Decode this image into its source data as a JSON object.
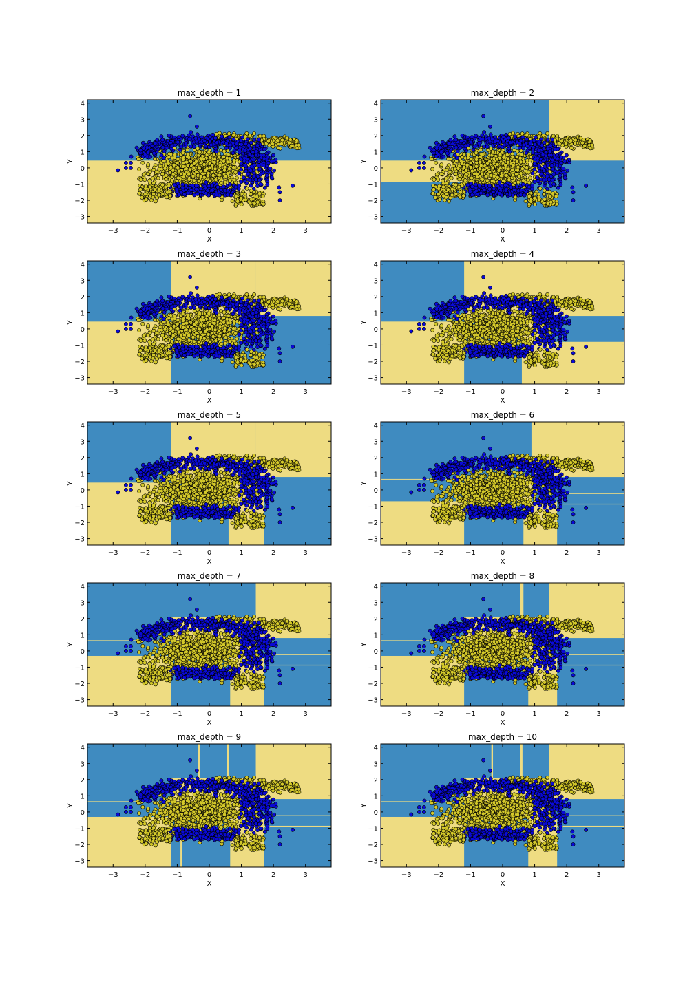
{
  "figure": {
    "background": "#ffffff"
  },
  "chart_data": {
    "type": "scatter",
    "description_kind": "decision-boundary grid",
    "grid": false,
    "layout_words": "5 rows x 2 columns",
    "colors": {
      "region_class_0": "#3f8bc0",
      "region_class_1": "#eedc82",
      "point_class_0": "#0a0ad8",
      "point_class_1": "#d4c92a",
      "point_edge": "#000000"
    },
    "xlim": [
      -3.8,
      3.8
    ],
    "ylim": [
      -3.4,
      4.2
    ],
    "xticks": [
      -3,
      -2,
      -1,
      0,
      1,
      2,
      3
    ],
    "yticks": [
      -3,
      -2,
      -1,
      0,
      1,
      2,
      3,
      4
    ],
    "xlabel": "X",
    "ylabel": "Y",
    "outlier_points_class0": [
      [
        -2.85,
        -0.15
      ],
      [
        -2.6,
        0.3
      ],
      [
        -2.6,
        0.0
      ],
      [
        -2.45,
        0.3
      ],
      [
        -2.45,
        0.0
      ],
      [
        2.6,
        -1.1
      ],
      [
        2.2,
        -2.0
      ],
      [
        2.2,
        -1.5
      ],
      [
        -0.6,
        3.2
      ]
    ],
    "panels": [
      {
        "title": "max_depth = 1",
        "base": 1,
        "rects": [
          [
            -3.8,
            0.45,
            3.8,
            4.2,
            0
          ]
        ]
      },
      {
        "title": "max_depth = 2",
        "base": 0,
        "rects": [
          [
            -3.8,
            -0.88,
            1.45,
            0.45,
            1
          ],
          [
            1.45,
            0.45,
            3.8,
            4.2,
            1
          ]
        ]
      },
      {
        "title": "max_depth = 3",
        "base": 0,
        "rects": [
          [
            -3.8,
            -3.4,
            -1.2,
            0.45,
            1
          ],
          [
            -1.2,
            0.45,
            1.45,
            4.2,
            1
          ],
          [
            1.45,
            0.8,
            3.8,
            4.2,
            1
          ]
        ]
      },
      {
        "title": "max_depth = 4",
        "base": 0,
        "rects": [
          [
            -3.8,
            -3.4,
            -1.2,
            0.45,
            1
          ],
          [
            -1.2,
            0.45,
            1.45,
            4.2,
            1
          ],
          [
            1.45,
            0.8,
            3.8,
            4.2,
            1
          ],
          [
            0.6,
            -3.4,
            1.45,
            0.45,
            1
          ],
          [
            1.45,
            -3.4,
            3.8,
            -0.8,
            1
          ]
        ]
      },
      {
        "title": "max_depth = 5",
        "base": 0,
        "rects": [
          [
            -3.8,
            -3.4,
            -1.2,
            0.45,
            1
          ],
          [
            -1.2,
            0.45,
            1.45,
            4.2,
            1
          ],
          [
            1.45,
            0.8,
            3.8,
            4.2,
            1
          ],
          [
            0.6,
            -3.4,
            1.7,
            0.45,
            1
          ]
        ]
      },
      {
        "title": "max_depth = 6",
        "base": 0,
        "rects": [
          [
            -3.8,
            -3.4,
            -1.2,
            -0.7,
            1
          ],
          [
            -1.2,
            -0.7,
            0.9,
            0.65,
            1
          ],
          [
            0.9,
            0.8,
            3.8,
            4.2,
            1
          ],
          [
            0.65,
            -3.4,
            1.7,
            -0.7,
            1
          ],
          [
            -3.8,
            0.65,
            0.9,
            0.68,
            1
          ],
          [
            1.7,
            -0.25,
            3.8,
            -0.2,
            1
          ],
          [
            1.7,
            -0.9,
            3.8,
            -0.85,
            1
          ]
        ]
      },
      {
        "title": "max_depth = 7",
        "base": 0,
        "rects": [
          [
            -3.8,
            -3.4,
            -1.2,
            -0.3,
            1
          ],
          [
            -1.2,
            -0.3,
            1.45,
            0.65,
            1
          ],
          [
            -1.2,
            0.65,
            1.45,
            2.1,
            1
          ],
          [
            1.45,
            0.8,
            3.8,
            4.2,
            1
          ],
          [
            0.65,
            -3.4,
            1.7,
            -0.3,
            1
          ],
          [
            -3.8,
            0.62,
            -1.2,
            0.66,
            1
          ],
          [
            1.7,
            -0.25,
            3.8,
            -0.2,
            1
          ],
          [
            1.7,
            -0.9,
            3.8,
            -0.85,
            1
          ]
        ]
      },
      {
        "title": "max_depth = 8",
        "base": 0,
        "rects": [
          [
            -3.8,
            -3.4,
            -1.2,
            -0.3,
            1
          ],
          [
            -1.2,
            -0.3,
            1.45,
            0.65,
            1
          ],
          [
            -1.2,
            0.65,
            1.45,
            2.1,
            1
          ],
          [
            1.45,
            0.8,
            3.8,
            4.2,
            1
          ],
          [
            0.8,
            -3.4,
            1.7,
            -0.3,
            1
          ],
          [
            0.55,
            2.1,
            0.65,
            4.2,
            1
          ],
          [
            -3.8,
            0.62,
            -1.2,
            0.66,
            1
          ],
          [
            1.7,
            -0.25,
            3.8,
            -0.2,
            1
          ],
          [
            1.7,
            -0.9,
            3.8,
            -0.85,
            1
          ]
        ]
      },
      {
        "title": "max_depth = 9",
        "base": 0,
        "rects": [
          [
            -3.8,
            -3.4,
            -1.2,
            -0.3,
            1
          ],
          [
            -1.2,
            -0.3,
            1.45,
            0.65,
            1
          ],
          [
            -1.2,
            0.65,
            1.45,
            2.1,
            1
          ],
          [
            1.45,
            0.8,
            3.8,
            4.2,
            1
          ],
          [
            0.65,
            -3.4,
            1.7,
            -0.3,
            1
          ],
          [
            -0.35,
            2.1,
            -0.3,
            4.2,
            1
          ],
          [
            0.55,
            2.1,
            0.62,
            4.2,
            1
          ],
          [
            -0.9,
            -3.4,
            -0.85,
            -0.3,
            1
          ],
          [
            -3.8,
            0.62,
            -1.2,
            0.66,
            1
          ],
          [
            1.7,
            -0.25,
            3.8,
            -0.2,
            1
          ],
          [
            1.7,
            -0.9,
            3.8,
            -0.85,
            1
          ]
        ]
      },
      {
        "title": "max_depth = 10",
        "base": 0,
        "rects": [
          [
            -3.8,
            -3.4,
            -1.2,
            -0.3,
            1
          ],
          [
            -1.2,
            -0.3,
            1.45,
            0.65,
            1
          ],
          [
            -1.2,
            0.65,
            1.45,
            2.1,
            1
          ],
          [
            1.45,
            0.8,
            3.8,
            4.2,
            1
          ],
          [
            0.8,
            -3.4,
            1.7,
            -0.3,
            1
          ],
          [
            -0.35,
            2.1,
            -0.3,
            4.2,
            1
          ],
          [
            0.55,
            2.1,
            0.62,
            4.2,
            1
          ],
          [
            -3.8,
            0.62,
            -1.2,
            0.66,
            1
          ],
          [
            1.7,
            -0.25,
            3.8,
            -0.2,
            1
          ],
          [
            1.7,
            -0.9,
            3.8,
            -0.85,
            1
          ]
        ]
      }
    ]
  }
}
